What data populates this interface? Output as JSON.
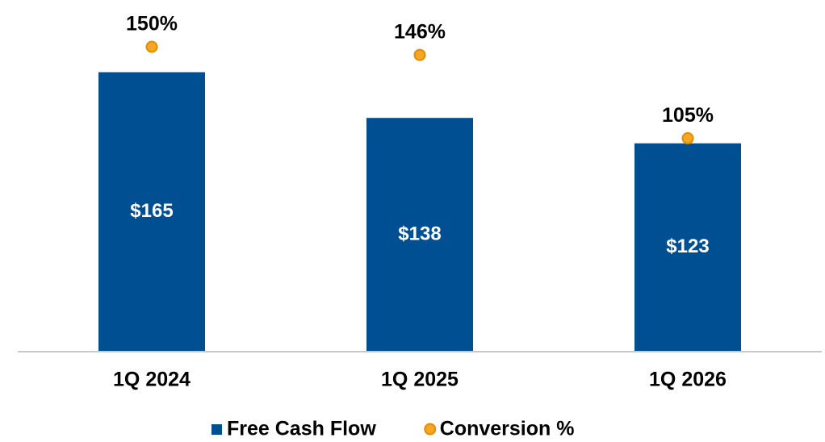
{
  "chart_data": {
    "type": "bar",
    "categories": [
      "1Q 2024",
      "1Q 2025",
      "1Q 2026"
    ],
    "series": [
      {
        "name": "Free Cash Flow",
        "type": "bar",
        "color": "#004f93",
        "values": [
          165,
          138,
          123
        ],
        "value_labels": [
          "$165",
          "$138",
          "$123"
        ]
      },
      {
        "name": "Conversion %",
        "type": "scatter",
        "axis": "y2",
        "color": "#f5a623",
        "values": [
          150,
          146,
          105
        ],
        "value_labels": [
          "150%",
          "146%",
          "105%"
        ]
      }
    ],
    "ylim": [
      0,
      180
    ],
    "y2lim": [
      0,
      150
    ]
  }
}
